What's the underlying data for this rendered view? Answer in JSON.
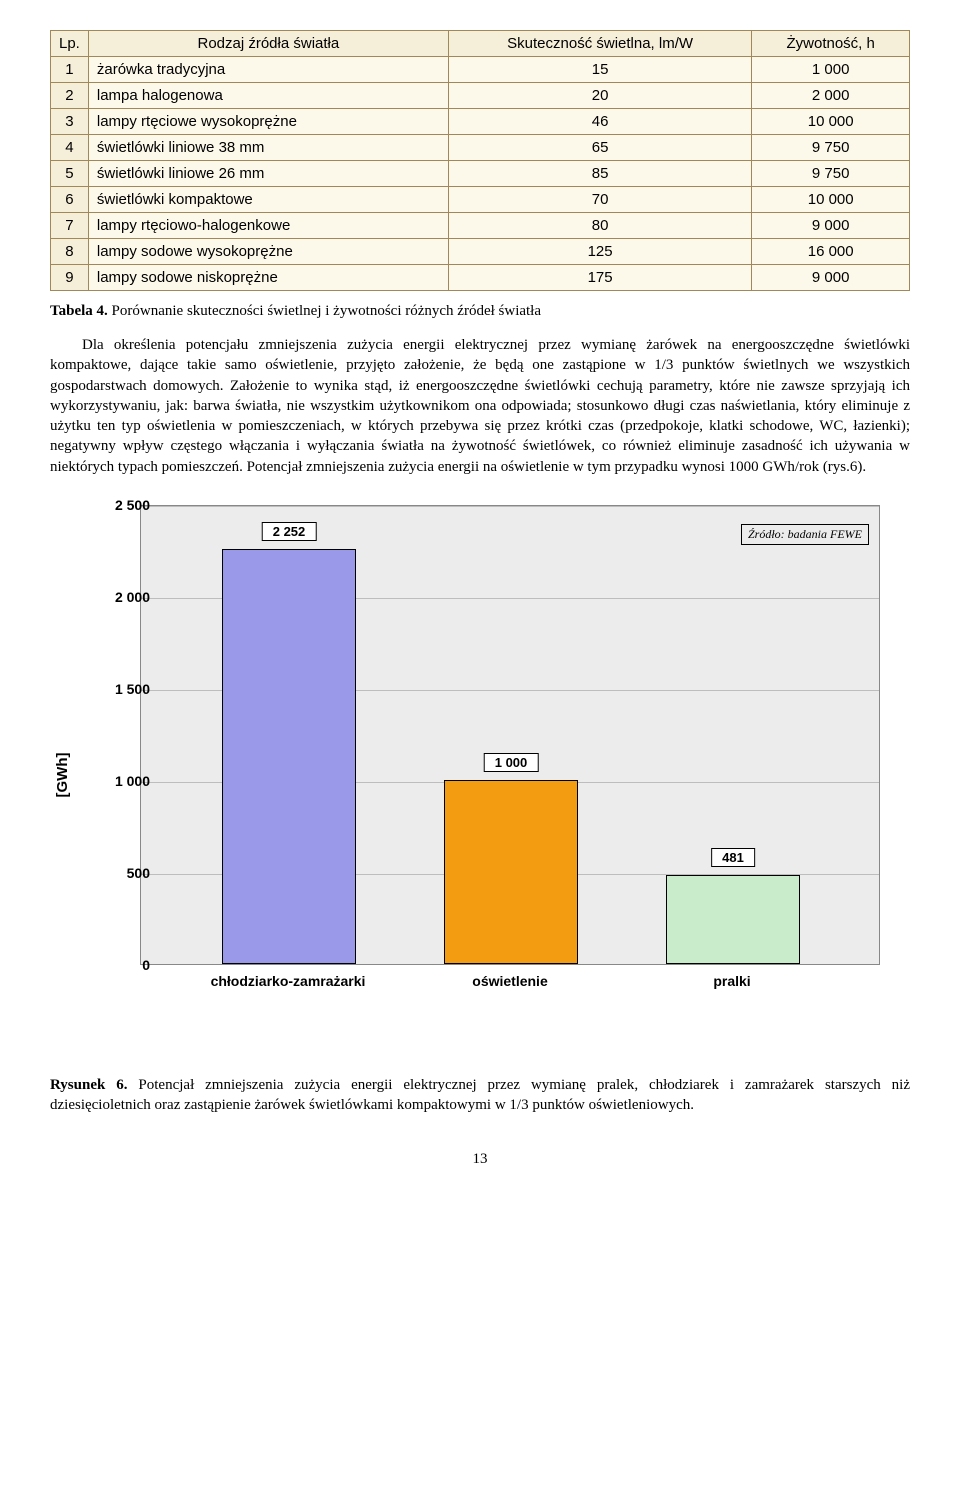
{
  "table": {
    "headers": [
      "Lp.",
      "Rodzaj źródła światła",
      "Skuteczność świetlna, lm/W",
      "Żywotność, h"
    ],
    "rows": [
      [
        "1",
        "żarówka tradycyjna",
        "15",
        "1 000"
      ],
      [
        "2",
        "lampa halogenowa",
        "20",
        "2 000"
      ],
      [
        "3",
        "lampy rtęciowe wysokoprężne",
        "46",
        "10 000"
      ],
      [
        "4",
        "świetlówki liniowe 38 mm",
        "65",
        "9 750"
      ],
      [
        "5",
        "świetlówki liniowe 26 mm",
        "85",
        "9 750"
      ],
      [
        "6",
        "świetlówki kompaktowe",
        "70",
        "10 000"
      ],
      [
        "7",
        "lampy rtęciowo-halogenkowe",
        "80",
        "9 000"
      ],
      [
        "8",
        "lampy sodowe wysokoprężne",
        "125",
        "16 000"
      ],
      [
        "9",
        "lampy sodowe niskoprężne",
        "175",
        "9 000"
      ]
    ],
    "header_bg": "#f5eed8",
    "cell_bg": "#fdf9ea",
    "border_color": "#a08858"
  },
  "table_caption_bold": "Tabela 4.",
  "table_caption_rest": " Porównanie skuteczności świetlnej i żywotności różnych źródeł światła",
  "paragraph": "Dla określenia potencjału zmniejszenia zużycia energii elektrycznej przez wymianę żarówek na energooszczędne świetlówki kompaktowe, dające takie samo oświetlenie, przyjęto założenie, że będą one zastąpione w 1/3 punktów świetlnych we wszystkich gospodarstwach domowych. Założenie to wynika stąd, iż energooszczędne świetlówki cechują parametry, które nie zawsze sprzyjają ich wykorzystywaniu, jak: barwa światła, nie wszystkim użytkownikom ona odpowiada; stosunkowo długi czas naświetlania, który eliminuje z użytku ten typ oświetlenia w pomieszczeniach, w których przebywa się przez krótki czas (przedpokoje, klatki schodowe, WC, łazienki); negatywny wpływ częstego włączania i wyłączania światła na żywotność świetlówek, co również eliminuje zasadność ich używania w niektórych typach pomieszczeń. Potencjał zmniejszenia zużycia energii na oświetlenie w tym przypadku wynosi 1000 GWh/rok (rys.6).",
  "chart": {
    "type": "bar",
    "y_axis_title": "[GWh]",
    "y_min": 0,
    "y_max": 2500,
    "y_step": 500,
    "y_ticks": [
      "0",
      "500",
      "1 000",
      "1 500",
      "2 000",
      "2 500"
    ],
    "plot_bg": "#ececec",
    "grid_color": "#bdbdbd",
    "border_color": "#888888",
    "source_note": "Źródło: badania FEWE",
    "bars": [
      {
        "category": "chłodziarko-zamrażarki",
        "value": 2252,
        "label": "2 252",
        "fill": "#9a98e8",
        "x_center_pct": 20,
        "width_pct": 18
      },
      {
        "category": "oświetlenie",
        "value": 1000,
        "label": "1 000",
        "fill": "#f39c12",
        "x_center_pct": 50,
        "width_pct": 18
      },
      {
        "category": "pralki",
        "value": 481,
        "label": "481",
        "fill": "#c9eccb",
        "x_center_pct": 80,
        "width_pct": 18
      }
    ]
  },
  "figure_caption_bold": "Rysunek 6.",
  "figure_caption_rest": " Potencjał zmniejszenia zużycia energii elektrycznej przez wymianę pralek, chłodziarek i zamrażarek starszych niż dziesięcioletnich oraz zastąpienie żarówek świetlówkami kompaktowymi w 1/3 punktów oświetleniowych.",
  "page_number": "13"
}
